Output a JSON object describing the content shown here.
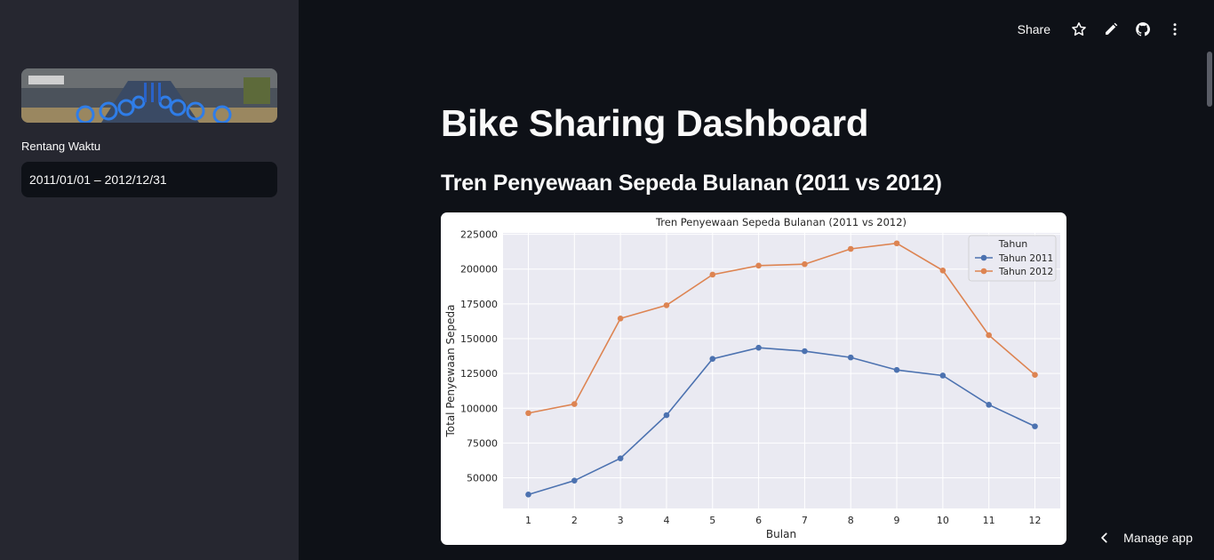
{
  "sidebar": {
    "image_alt": "bike sharing station",
    "date_label": "Rentang Waktu",
    "date_value": "2011/01/01 – 2012/12/31"
  },
  "header": {
    "share_label": "Share",
    "icons": [
      "star-icon",
      "edit-icon",
      "github-icon",
      "more-icon"
    ]
  },
  "main": {
    "title": "Bike Sharing Dashboard",
    "section_title": "Tren Penyewaan Sepeda Bulanan (2011 vs 2012)"
  },
  "footer": {
    "manage_label": "Manage app"
  },
  "colors": {
    "bg": "#0e1117",
    "sidebar": "#262730",
    "series_2011": "#4c72b0",
    "series_2012": "#dd8452",
    "plot_bg": "#eaeaf2"
  },
  "chart_data": {
    "type": "line",
    "title": "Tren Penyewaan Sepeda Bulanan (2011 vs 2012)",
    "xlabel": "Bulan",
    "ylabel": "Total Penyewaan Sepeda",
    "x": [
      1,
      2,
      3,
      4,
      5,
      6,
      7,
      8,
      9,
      10,
      11,
      12
    ],
    "ylim": [
      28000,
      226000
    ],
    "yticks": [
      50000,
      75000,
      100000,
      125000,
      150000,
      175000,
      200000,
      225000
    ],
    "grid": true,
    "legend_title": "Tahun",
    "legend_position": "top-right",
    "series": [
      {
        "name": "Tahun 2011",
        "color": "#4c72b0",
        "values": [
          38000,
          48000,
          64000,
          95000,
          135500,
          143500,
          141000,
          136500,
          127500,
          123500,
          102500,
          87000
        ]
      },
      {
        "name": "Tahun 2012",
        "color": "#dd8452",
        "values": [
          96500,
          103000,
          164500,
          174000,
          196000,
          202500,
          203500,
          214500,
          218500,
          199000,
          152500,
          124000
        ]
      }
    ]
  }
}
